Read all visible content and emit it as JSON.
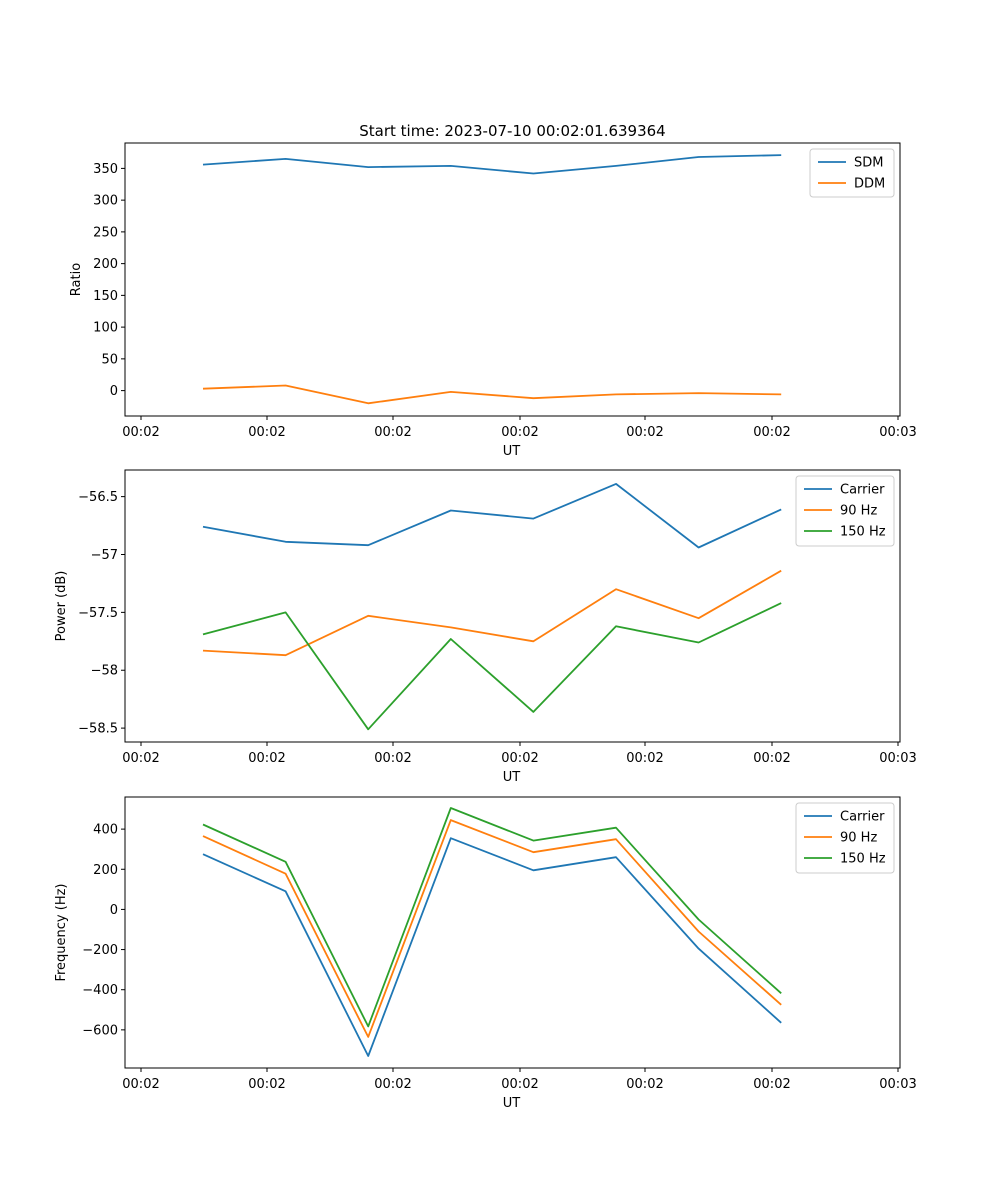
{
  "chart_data": [
    {
      "type": "line",
      "title": "Start time: 2023-07-10 00:02:01.639364",
      "xlabel": "UT",
      "ylabel": "Ratio",
      "x_tick_labels": [
        "00:02",
        "00:02",
        "00:02",
        "00:02",
        "00:02",
        "00:02",
        "00:02",
        "00:03"
      ],
      "x": [
        1,
        2,
        3,
        4,
        5,
        6,
        7,
        8
      ],
      "ylim": [
        -40,
        390
      ],
      "yticks": [
        0,
        50,
        100,
        150,
        200,
        250,
        300,
        350
      ],
      "legend": "top-right",
      "series": [
        {
          "name": "SDM",
          "color": "#1f77b4",
          "values": [
            356,
            365,
            352,
            354,
            342,
            354,
            368,
            371
          ]
        },
        {
          "name": "DDM",
          "color": "#ff7f0e",
          "values": [
            3,
            8,
            -20,
            -2,
            -12,
            -6,
            -4,
            -6
          ]
        }
      ]
    },
    {
      "type": "line",
      "title": "",
      "xlabel": "UT",
      "ylabel": "Power (dB)",
      "x_tick_labels": [
        "00:02",
        "00:02",
        "00:02",
        "00:02",
        "00:02",
        "00:02",
        "00:02",
        "00:03"
      ],
      "x": [
        1,
        2,
        3,
        4,
        5,
        6,
        7,
        8
      ],
      "ylim": [
        -58.62,
        -56.27
      ],
      "yticks": [
        -58.5,
        -58.0,
        -57.5,
        -57.0,
        -56.5
      ],
      "legend": "top-right",
      "series": [
        {
          "name": "Carrier",
          "color": "#1f77b4",
          "values": [
            -56.76,
            -56.89,
            -56.92,
            -56.62,
            -56.69,
            -56.39,
            -56.94,
            -56.61
          ]
        },
        {
          "name": "90 Hz",
          "color": "#ff7f0e",
          "values": [
            -57.83,
            -57.87,
            -57.53,
            -57.63,
            -57.75,
            -57.3,
            -57.55,
            -57.14
          ]
        },
        {
          "name": "150 Hz",
          "color": "#2ca02c",
          "values": [
            -57.69,
            -57.5,
            -58.51,
            -57.73,
            -58.36,
            -57.62,
            -57.76,
            -57.42
          ]
        }
      ]
    },
    {
      "type": "line",
      "title": "",
      "xlabel": "UT",
      "ylabel": "Frequency (Hz)",
      "x_tick_labels": [
        "00:02",
        "00:02",
        "00:02",
        "00:02",
        "00:02",
        "00:02",
        "00:02",
        "00:03"
      ],
      "x": [
        1,
        2,
        3,
        4,
        5,
        6,
        7,
        8
      ],
      "ylim": [
        -790,
        560
      ],
      "yticks": [
        -600,
        -400,
        -200,
        0,
        200,
        400
      ],
      "legend": "top-right",
      "series": [
        {
          "name": "Carrier",
          "color": "#1f77b4",
          "values": [
            275,
            90,
            -730,
            355,
            195,
            260,
            -195,
            -565
          ]
        },
        {
          "name": "90 Hz",
          "color": "#ff7f0e",
          "values": [
            365,
            178,
            -635,
            445,
            285,
            350,
            -110,
            -475
          ]
        },
        {
          "name": "150 Hz",
          "color": "#2ca02c",
          "values": [
            423,
            237,
            -583,
            505,
            343,
            407,
            -50,
            -418
          ]
        }
      ]
    }
  ]
}
